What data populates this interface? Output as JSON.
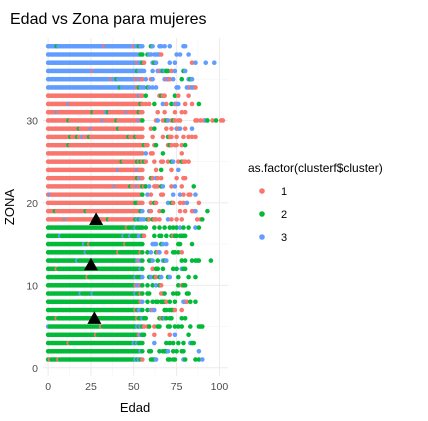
{
  "chart_data": {
    "type": "scatter",
    "title": "Edad vs Zona para mujeres",
    "xlabel": "Edad",
    "ylabel": "ZONA",
    "xlim": [
      -3,
      105
    ],
    "ylim": [
      -1,
      40
    ],
    "x_ticks": [
      0,
      25,
      50,
      75,
      100
    ],
    "y_ticks": [
      0,
      10,
      20,
      30
    ],
    "grid": true,
    "legend": {
      "title": "as.factor(clusterf$cluster)",
      "placement": "right",
      "entries": [
        {
          "label": "1",
          "color": "#F8766D"
        },
        {
          "label": "2",
          "color": "#00BA38"
        },
        {
          "label": "3",
          "color": "#619CFF"
        }
      ]
    },
    "zones": [
      {
        "zona": 1,
        "cluster": "2",
        "max_age": 90
      },
      {
        "zona": 2,
        "cluster": "2",
        "max_age": 88
      },
      {
        "zona": 3,
        "cluster": "2",
        "max_age": 85
      },
      {
        "zona": 4,
        "cluster": "2",
        "max_age": 82
      },
      {
        "zona": 5,
        "cluster": "2",
        "max_age": 90
      },
      {
        "zona": 6,
        "cluster": "2",
        "max_age": 80
      },
      {
        "zona": 7,
        "cluster": "2",
        "max_age": 78
      },
      {
        "zona": 8,
        "cluster": "2",
        "max_age": 86
      },
      {
        "zona": 9,
        "cluster": "2",
        "max_age": 82
      },
      {
        "zona": 10,
        "cluster": "2",
        "max_age": 80
      },
      {
        "zona": 11,
        "cluster": "2",
        "max_age": 86
      },
      {
        "zona": 12,
        "cluster": "2",
        "max_age": 80
      },
      {
        "zona": 13,
        "cluster": "2",
        "max_age": 95
      },
      {
        "zona": 14,
        "cluster": "2",
        "max_age": 78
      },
      {
        "zona": 15,
        "cluster": "2",
        "max_age": 84
      },
      {
        "zona": 16,
        "cluster": "2",
        "max_age": 80
      },
      {
        "zona": 17,
        "cluster": "2",
        "max_age": 88
      },
      {
        "zona": 18,
        "cluster": "1",
        "max_age": 90
      },
      {
        "zona": 19,
        "cluster": "1",
        "max_age": 93
      },
      {
        "zona": 20,
        "cluster": "1",
        "max_age": 88
      },
      {
        "zona": 21,
        "cluster": "1",
        "max_age": 86
      },
      {
        "zona": 22,
        "cluster": "1",
        "max_age": 85
      },
      {
        "zona": 23,
        "cluster": "1",
        "max_age": 80
      },
      {
        "zona": 24,
        "cluster": "1",
        "max_age": 76
      },
      {
        "zona": 25,
        "cluster": "1",
        "max_age": 82
      },
      {
        "zona": 26,
        "cluster": "1",
        "max_age": 78
      },
      {
        "zona": 27,
        "cluster": "1",
        "max_age": 80
      },
      {
        "zona": 28,
        "cluster": "1",
        "max_age": 86
      },
      {
        "zona": 29,
        "cluster": "1",
        "max_age": 84
      },
      {
        "zona": 30,
        "cluster": "1",
        "max_age": 102
      },
      {
        "zona": 31,
        "cluster": "1",
        "max_age": 80
      },
      {
        "zona": 32,
        "cluster": "1",
        "max_age": 88
      },
      {
        "zona": 33,
        "cluster": "1",
        "max_age": 82
      },
      {
        "zona": 34,
        "cluster": "3",
        "max_age": 86
      },
      {
        "zona": 35,
        "cluster": "3",
        "max_age": 84
      },
      {
        "zona": 36,
        "cluster": "3",
        "max_age": 80
      },
      {
        "zona": 37,
        "cluster": "3",
        "max_age": 97
      },
      {
        "zona": 38,
        "cluster": "3",
        "max_age": 82
      },
      {
        "zona": 39,
        "cluster": "3",
        "max_age": 80
      }
    ],
    "centroids": [
      {
        "cluster": "1",
        "x": 28,
        "y": 18
      },
      {
        "cluster": "2",
        "x": 25,
        "y": 12.5
      },
      {
        "cluster": "3",
        "x": 27,
        "y": 6
      }
    ]
  }
}
